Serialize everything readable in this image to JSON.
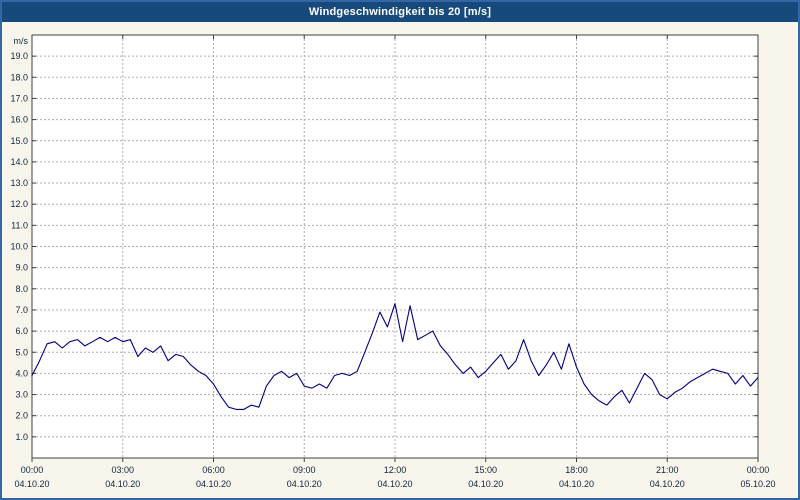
{
  "title_bar": {
    "title": "Windgeschwindigkeit bis 20 [m/s]"
  },
  "colors": {
    "window_border": "#3465A4",
    "title_bg": "#174A7C",
    "title_text": "#FFFFFF",
    "page_bg": "#F8F6EC",
    "plot_bg": "#FFFFFF",
    "plot_border": "#404040",
    "grid": "#ADADAD",
    "line": "#00007F",
    "tick": "#404040",
    "label_text": "#10243E"
  },
  "chart_data": {
    "type": "line",
    "title": "Windgeschwindigkeit bis 20 [m/s]",
    "ylabel": "m/s",
    "xlabel": "",
    "ylim": [
      0,
      20
    ],
    "x_range_hours": [
      0,
      24
    ],
    "grid": "dashed",
    "legend_position": "none",
    "y_tick_values": [
      1,
      2,
      3,
      4,
      5,
      6,
      7,
      8,
      9,
      10,
      11,
      12,
      13,
      14,
      15,
      16,
      17,
      18,
      19
    ],
    "y_tick_labels": [
      "1.0",
      "2.0",
      "3.0",
      "4.0",
      "5.0",
      "6.0",
      "7.0",
      "8.0",
      "9.0",
      "10.0",
      "11.0",
      "12.0",
      "13.0",
      "14.0",
      "15.0",
      "16.0",
      "17.0",
      "18.0",
      "19.0"
    ],
    "x_ticks": [
      {
        "hour": 0,
        "time": "00:00",
        "date": "04.10.20"
      },
      {
        "hour": 3,
        "time": "03:00",
        "date": "04.10.20"
      },
      {
        "hour": 6,
        "time": "06:00",
        "date": "04.10.20"
      },
      {
        "hour": 9,
        "time": "09:00",
        "date": "04.10.20"
      },
      {
        "hour": 12,
        "time": "12:00",
        "date": "04.10.20"
      },
      {
        "hour": 15,
        "time": "15:00",
        "date": "04.10.20"
      },
      {
        "hour": 18,
        "time": "18:00",
        "date": "04.10.20"
      },
      {
        "hour": 21,
        "time": "21:00",
        "date": "04.10.20"
      },
      {
        "hour": 24,
        "time": "00:00",
        "date": "05.10.20"
      }
    ],
    "series": [
      {
        "name": "Windgeschwindigkeit",
        "color": "#00007F",
        "x_start_hour": 0,
        "x_step_hours": 0.25,
        "values": [
          3.9,
          4.6,
          5.4,
          5.5,
          5.2,
          5.5,
          5.6,
          5.3,
          5.5,
          5.7,
          5.5,
          5.7,
          5.5,
          5.6,
          4.8,
          5.2,
          5.0,
          5.3,
          4.6,
          4.9,
          4.8,
          4.4,
          4.1,
          3.9,
          3.5,
          2.9,
          2.4,
          2.3,
          2.3,
          2.5,
          2.4,
          3.4,
          3.9,
          4.1,
          3.8,
          4.0,
          3.4,
          3.3,
          3.5,
          3.3,
          3.9,
          4.0,
          3.9,
          4.1,
          5.0,
          5.9,
          6.9,
          6.2,
          7.3,
          5.5,
          7.2,
          5.6,
          5.8,
          6.0,
          5.3,
          4.9,
          4.4,
          4.0,
          4.3,
          3.8,
          4.1,
          4.5,
          4.9,
          4.2,
          4.6,
          5.6,
          4.6,
          3.9,
          4.4,
          5.0,
          4.2,
          5.4,
          4.3,
          3.5,
          3.0,
          2.7,
          2.5,
          2.9,
          3.2,
          2.6,
          3.3,
          4.0,
          3.7,
          3.0,
          2.8,
          3.1,
          3.3,
          3.6,
          3.8,
          4.0,
          4.2,
          4.1,
          4.0,
          3.5,
          3.9,
          3.4,
          3.8
        ]
      }
    ]
  }
}
